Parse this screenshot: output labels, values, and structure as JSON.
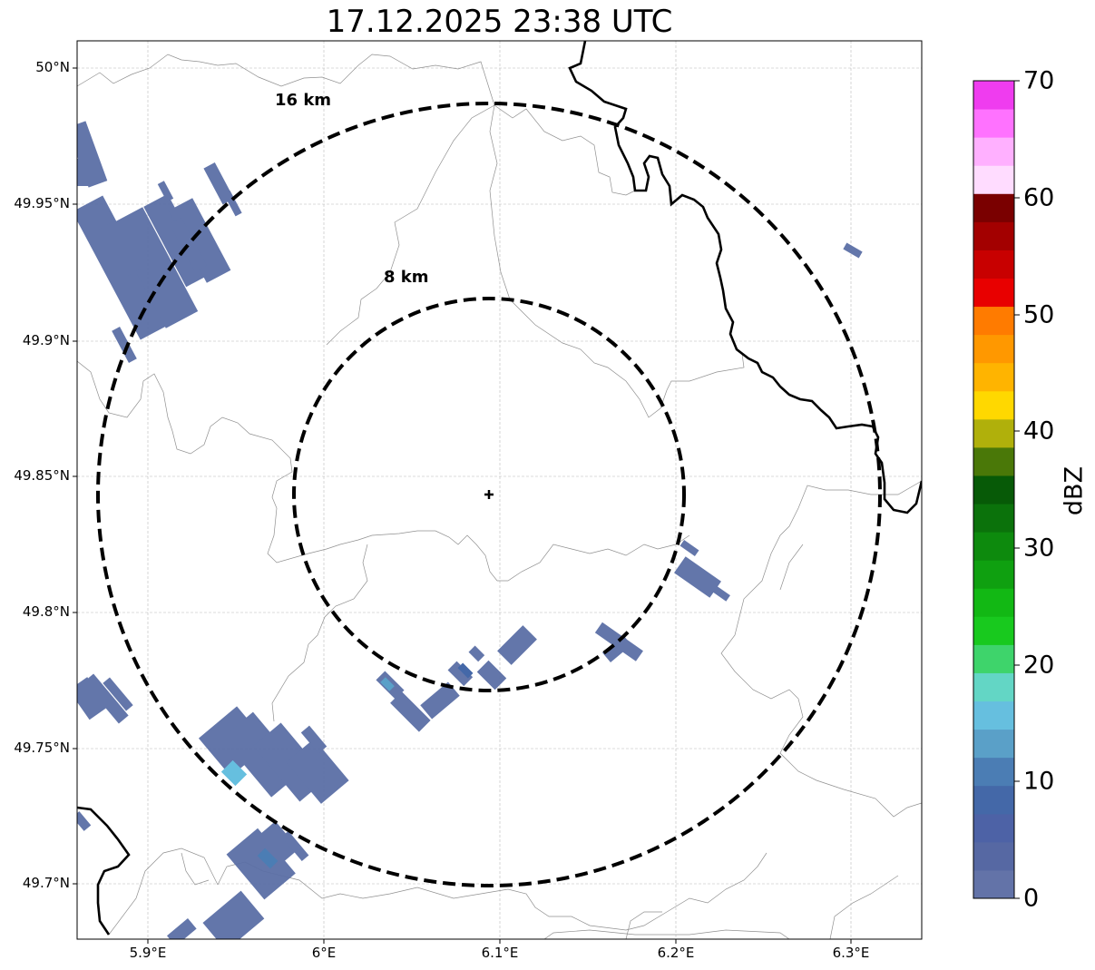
{
  "title": "17.12.2025 23:38 UTC",
  "map": {
    "lat_ticks": [
      "50°N",
      "49.95°N",
      "49.9°N",
      "49.85°N",
      "49.8°N",
      "49.75°N",
      "49.7°N"
    ],
    "lon_ticks": [
      "5.9°E",
      "6°E",
      "6.1°E",
      "6.2°E",
      "6.3°E"
    ],
    "grid": true,
    "range_rings": [
      {
        "label": "16 km",
        "radius_km": 16
      },
      {
        "label": "8 km",
        "radius_km": 8
      }
    ],
    "radar_marker": "plus-marker"
  },
  "colorbar": {
    "label": "dBZ",
    "ticks": [
      "0",
      "10",
      "20",
      "30",
      "40",
      "50",
      "60",
      "70"
    ],
    "colors": [
      "#6373a8",
      "#5668a3",
      "#4d62a6",
      "#4468a8",
      "#4b7db4",
      "#5aa0c8",
      "#66bfdf",
      "#63d6c5",
      "#3ed46b",
      "#18c91e",
      "#12b814",
      "#0fa010",
      "#0d8a0d",
      "#0b720b",
      "#075a07",
      "#4a7808",
      "#b0b00b",
      "#ffd800",
      "#ffb400",
      "#ff9800",
      "#ff7b00",
      "#e80000",
      "#c80000",
      "#a30000",
      "#7a0000",
      "#ffdcff",
      "#ffb0ff",
      "#ff72ff",
      "#ef3cef"
    ]
  }
}
